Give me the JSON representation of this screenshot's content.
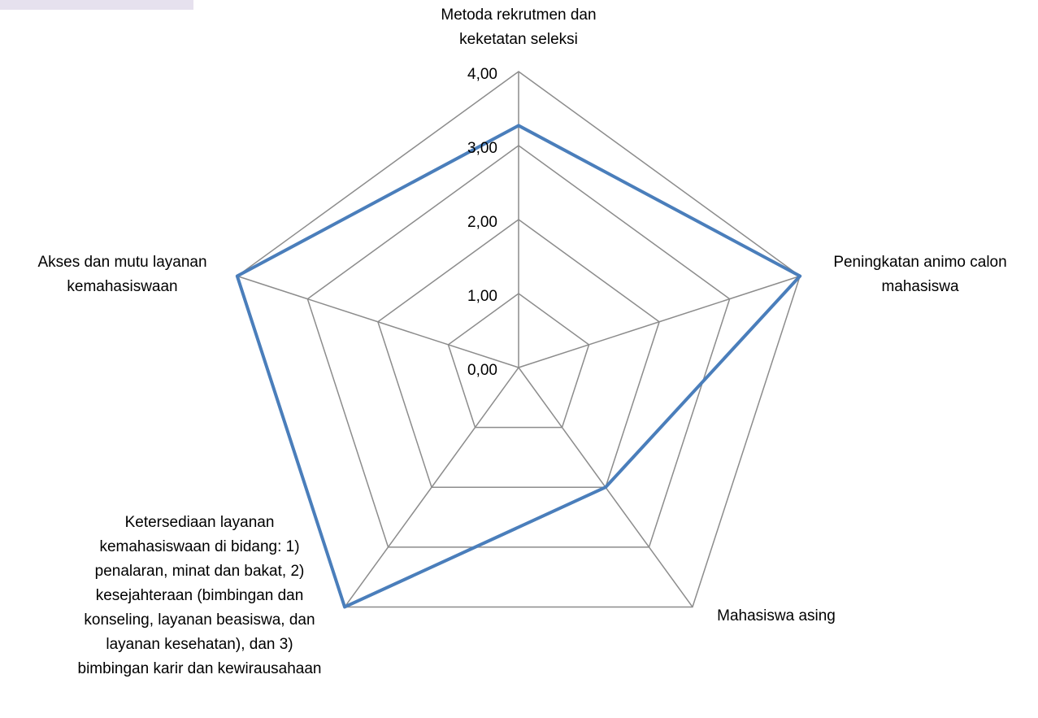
{
  "chart_data": {
    "type": "radar",
    "categories": [
      "Metoda rekrutmen dan keketatan seleksi",
      "Peningkatan animo calon mahasiswa",
      "Mahasiswa asing",
      "Ketersediaan layanan kemahasiswaan di bidang: 1) penalaran, minat dan bakat, 2) kesejahteraan (bimbingan dan konseling, layanan beasiswa, dan layanan kesehatan), dan 3) bimbingan karir dan kewirausahaan",
      "Akses dan mutu layanan kemahasiswaan"
    ],
    "series": [
      {
        "color": "#4a7ebb",
        "values": [
          3.27,
          4,
          2,
          4,
          4
        ]
      }
    ],
    "ylim": [
      0,
      4
    ],
    "yticks": [
      {
        "value": 0,
        "label": "0,00"
      },
      {
        "value": 1,
        "label": "1,00"
      },
      {
        "value": 2,
        "label": "2,00"
      },
      {
        "value": 3,
        "label": "3,00"
      },
      {
        "value": 4,
        "label": "4,00"
      }
    ],
    "grid": true
  }
}
